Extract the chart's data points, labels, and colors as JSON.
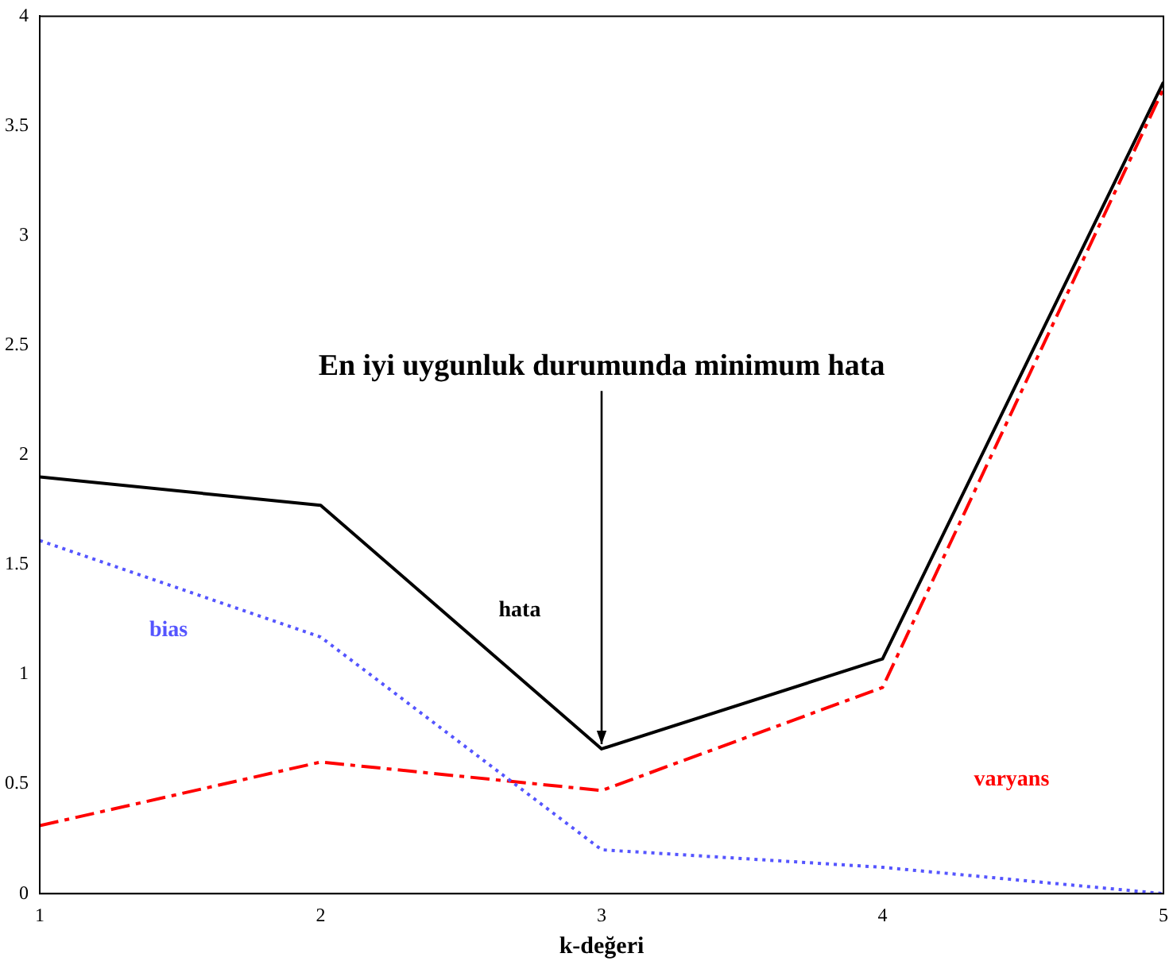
{
  "chart_data": {
    "type": "line",
    "xlabel": "k-değeri",
    "x": [
      1,
      2,
      3,
      4,
      5
    ],
    "series": [
      {
        "name": "hata",
        "color": "#000000",
        "line_style": "solid",
        "values": [
          1.9,
          1.77,
          0.66,
          1.07,
          3.7
        ]
      },
      {
        "name": "bias",
        "color": "#5555ff",
        "line_style": "dotted",
        "values": [
          1.61,
          1.17,
          0.2,
          0.12,
          0
        ]
      },
      {
        "name": "varyans",
        "color": "#ff0000",
        "line_style": "dashed",
        "values": [
          0.31,
          0.6,
          0.47,
          0.94,
          3.67
        ]
      }
    ],
    "xlim": [
      1,
      5
    ],
    "xticks": [
      1,
      2,
      3,
      4,
      5
    ],
    "ylim": [
      0,
      4
    ],
    "yticks": [
      0,
      0.5,
      1,
      1.5,
      2,
      2.5,
      3,
      3.5,
      4
    ],
    "grid": false,
    "legend": false,
    "marker": "none",
    "annotations": [
      {
        "text": "En iyi uygunluk durumunda minimum hata",
        "x": 3,
        "y": 0.66
      }
    ]
  }
}
